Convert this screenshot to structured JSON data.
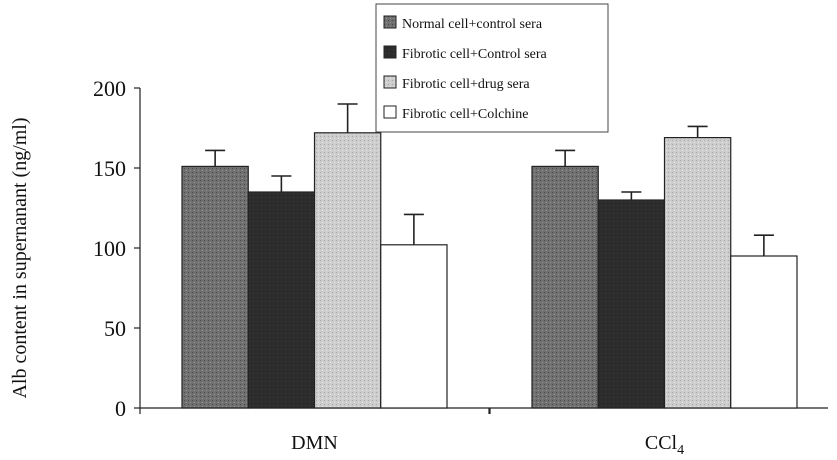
{
  "chart_data": {
    "type": "bar",
    "ylabel": "Alb content in supernanant (ng/ml)",
    "xlabel": "",
    "ylim": [
      0,
      200
    ],
    "yticks": [
      0,
      50,
      100,
      150,
      200
    ],
    "categories": [
      "DMN",
      "CCl4"
    ],
    "category_labels": [
      {
        "main": "DMN",
        "sub": ""
      },
      {
        "main": "CCl",
        "sub": "4"
      }
    ],
    "series": [
      {
        "name": "Normal cell+control sera",
        "values": [
          151,
          151
        ],
        "errors": [
          10,
          10
        ],
        "color": "#6e6e6e",
        "pattern": "stipple-dark"
      },
      {
        "name": "Fibrotic cell+Control sera",
        "values": [
          135,
          130
        ],
        "errors": [
          10,
          5
        ],
        "color": "#2e2e2e",
        "pattern": "solid-dark"
      },
      {
        "name": "Fibrotic cell+drug sera",
        "values": [
          172,
          169
        ],
        "errors": [
          18,
          7
        ],
        "color": "#c6c6c6",
        "pattern": "stipple-light"
      },
      {
        "name": "Fibrotic cell+Colchine",
        "values": [
          102,
          95
        ],
        "errors": [
          19,
          13
        ],
        "color": "#ffffff",
        "pattern": "empty"
      }
    ],
    "legend_position": "top-center",
    "grid": false
  }
}
